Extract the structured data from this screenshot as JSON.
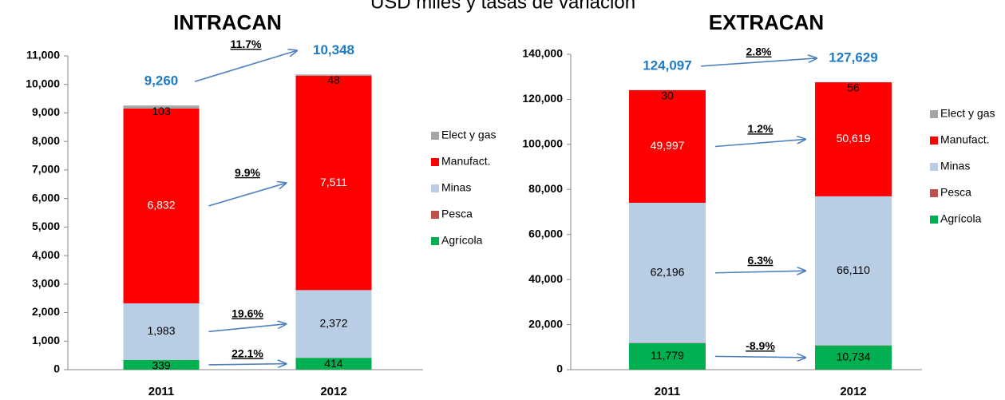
{
  "title": "USD miles y tasas de variación",
  "chart_data": [
    {
      "type": "bar",
      "stacked": true,
      "title": "INTRACAN",
      "categories": [
        "2011",
        "2012"
      ],
      "ylim": [
        0,
        11000
      ],
      "yticks": [
        0,
        {
          "value": 1000,
          "label": "1,000"
        },
        {
          "value": 2000,
          "label": "2,000"
        },
        {
          "value": 3000,
          "label": "3,000"
        },
        {
          "value": 4000,
          "label": "4,000"
        },
        {
          "value": 5000,
          "label": "5,000"
        },
        {
          "value": 6000,
          "label": "6,000"
        },
        {
          "value": 7000,
          "label": "7,000"
        },
        {
          "value": 8000,
          "label": "8,000"
        },
        {
          "value": 9000,
          "label": "9,000"
        },
        {
          "value": 10000,
          "label": "10,000"
        },
        {
          "value": 11000,
          "label": "11,000"
        }
      ],
      "legend": "right",
      "series": [
        {
          "name": "Agrícola",
          "color": "#00b050",
          "values": [
            339,
            414
          ],
          "value_labels": [
            "339",
            "414"
          ],
          "change": "22.1%"
        },
        {
          "name": "Pesca",
          "color": "#c0504d",
          "values": [
            3,
            3
          ]
        },
        {
          "name": "Minas",
          "color": "#b9cde5",
          "values": [
            1983,
            2372
          ],
          "value_labels": [
            "1,983",
            "2,372"
          ],
          "change": "19.6%"
        },
        {
          "name": "Manufact.",
          "color": "#ff0000",
          "values": [
            6832,
            7511
          ],
          "value_labels": [
            "6,832",
            "7,511"
          ],
          "label_color": "#ffffff",
          "change": "9.9%"
        },
        {
          "name": "Elect y gas",
          "color": "#a6a6a6",
          "values": [
            103,
            48
          ],
          "value_labels": [
            "103",
            "48"
          ]
        }
      ],
      "totals": [
        9260,
        10348
      ],
      "total_labels": [
        "9,260",
        "10,348"
      ],
      "total_change": "11.7%",
      "total_color": "#1f7ac4"
    },
    {
      "type": "bar",
      "stacked": true,
      "title": "EXTRACAN",
      "categories": [
        "2011",
        "2012"
      ],
      "ylim": [
        0,
        140000
      ],
      "yticks": [
        0,
        {
          "value": 20000,
          "label": "20,000"
        },
        {
          "value": 40000,
          "label": "40,000"
        },
        {
          "value": 60000,
          "label": "60,000"
        },
        {
          "value": 80000,
          "label": "80,000"
        },
        {
          "value": 100000,
          "label": "100,000"
        },
        {
          "value": 120000,
          "label": "120,000"
        },
        {
          "value": 140000,
          "label": "140,000"
        }
      ],
      "legend": "right",
      "series": [
        {
          "name": "Agrícola",
          "color": "#00b050",
          "values": [
            11779,
            10734
          ],
          "value_labels": [
            "11,779",
            "10,734"
          ],
          "change": "-8.9%"
        },
        {
          "name": "Pesca",
          "color": "#c0504d",
          "values": [
            95,
            110
          ]
        },
        {
          "name": "Minas",
          "color": "#b9cde5",
          "values": [
            62196,
            66110
          ],
          "value_labels": [
            "62,196",
            "66,110"
          ],
          "change": "6.3%"
        },
        {
          "name": "Manufact.",
          "color": "#ff0000",
          "values": [
            49997,
            50619
          ],
          "value_labels": [
            "49,997",
            "50,619"
          ],
          "label_color": "#ffffff",
          "change": "1.2%"
        },
        {
          "name": "Elect y gas",
          "color": "#a6a6a6",
          "values": [
            30,
            56
          ],
          "value_labels": [
            "30",
            "56"
          ]
        }
      ],
      "totals": [
        124097,
        127629
      ],
      "total_labels": [
        "124,097",
        "127,629"
      ],
      "total_change": "2.8%",
      "total_color": "#1f7ac4"
    }
  ]
}
